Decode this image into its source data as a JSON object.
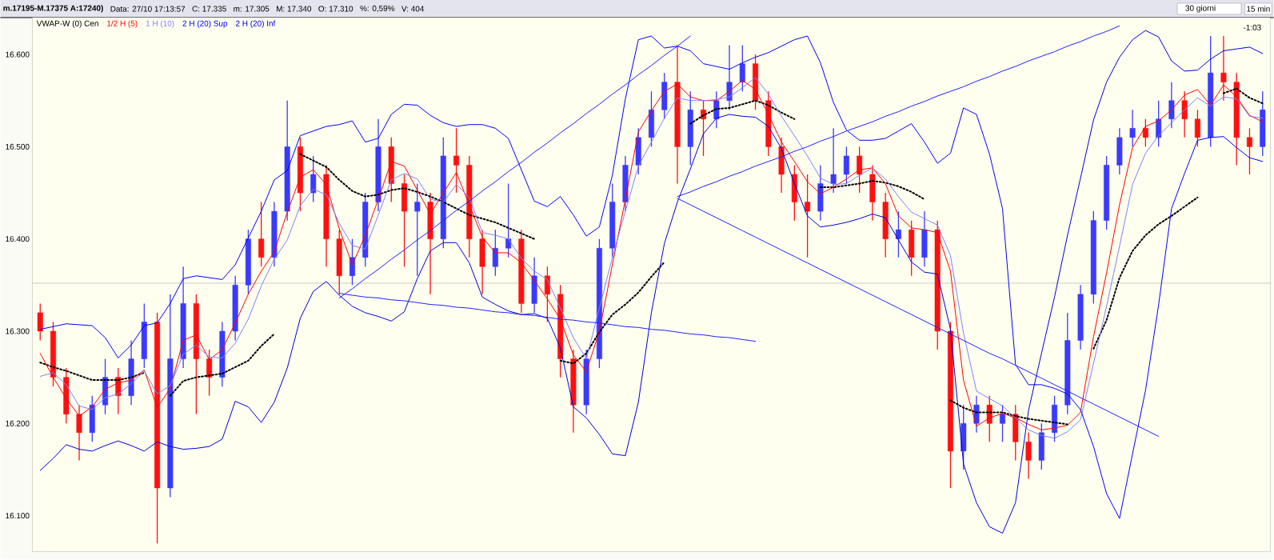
{
  "chart_data": {
    "type": "candlestick",
    "annotations": [
      "m.17195-M.17375 A:17240)",
      "Data: 27/10 17:13:57",
      "C: 17.335",
      "m: 17.305",
      "M: 17.340",
      "O: 17.310",
      "%: 0,59%",
      "V: 404",
      "30 giorni",
      "15 min",
      "-1:03"
    ],
    "categories": [
      null,
      null,
      null,
      null,
      null,
      null,
      null,
      null,
      null,
      null,
      null,
      null,
      null,
      null,
      null,
      null,
      null,
      null,
      null,
      null,
      null,
      null,
      null,
      null,
      null,
      null,
      null,
      null,
      null,
      null,
      null,
      null,
      null,
      null,
      null,
      null,
      null,
      null,
      null,
      null,
      null,
      null,
      null,
      null,
      null,
      null,
      null,
      null,
      null,
      null,
      null,
      null,
      null,
      null,
      null,
      null,
      null,
      null,
      null,
      null,
      null,
      null,
      null,
      null,
      null,
      null,
      null,
      null,
      null,
      null,
      null,
      null,
      null,
      null,
      null,
      null,
      null,
      null,
      null,
      null,
      null,
      null,
      null,
      null,
      null,
      null,
      null,
      null,
      null,
      null,
      null,
      null,
      null,
      null,
      null
    ],
    "ohlc": [
      [
        16.32,
        16.33,
        16.29,
        16.3
      ],
      [
        16.3,
        16.31,
        16.24,
        16.25
      ],
      [
        16.25,
        16.26,
        16.2,
        16.21
      ],
      [
        16.21,
        16.22,
        16.16,
        16.19
      ],
      [
        16.19,
        16.23,
        16.18,
        16.22
      ],
      [
        16.22,
        16.27,
        16.21,
        16.25
      ],
      [
        16.25,
        16.26,
        16.21,
        16.23
      ],
      [
        16.23,
        16.29,
        16.22,
        16.27
      ],
      [
        16.27,
        16.33,
        16.26,
        16.31
      ],
      [
        16.31,
        16.32,
        16.07,
        16.13
      ],
      [
        16.13,
        16.34,
        16.12,
        16.27
      ],
      [
        16.27,
        16.37,
        16.26,
        16.33
      ],
      [
        16.33,
        16.34,
        16.21,
        16.27
      ],
      [
        16.27,
        16.28,
        16.23,
        16.25
      ],
      [
        16.25,
        16.31,
        16.24,
        16.3
      ],
      [
        16.3,
        16.36,
        16.29,
        16.35
      ],
      [
        16.35,
        16.41,
        16.34,
        16.4
      ],
      [
        16.4,
        16.44,
        16.37,
        16.38
      ],
      [
        16.38,
        16.44,
        16.37,
        16.43
      ],
      [
        16.43,
        16.55,
        16.42,
        16.5
      ],
      [
        16.5,
        16.51,
        16.43,
        16.45
      ],
      [
        16.45,
        16.49,
        16.44,
        16.47
      ],
      [
        16.47,
        16.48,
        16.37,
        16.4
      ],
      [
        16.4,
        16.41,
        16.34,
        16.36
      ],
      [
        16.36,
        16.4,
        16.35,
        16.38
      ],
      [
        16.38,
        16.45,
        16.37,
        16.44
      ],
      [
        16.44,
        16.53,
        16.43,
        16.5
      ],
      [
        16.5,
        16.51,
        16.44,
        16.46
      ],
      [
        16.46,
        16.47,
        16.37,
        16.43
      ],
      [
        16.43,
        16.46,
        16.36,
        16.44
      ],
      [
        16.44,
        16.45,
        16.34,
        16.4
      ],
      [
        16.4,
        16.51,
        16.39,
        16.49
      ],
      [
        16.49,
        16.52,
        16.45,
        16.48
      ],
      [
        16.48,
        16.49,
        16.38,
        16.4
      ],
      [
        16.4,
        16.41,
        16.34,
        16.37
      ],
      [
        16.37,
        16.41,
        16.36,
        16.39
      ],
      [
        16.39,
        16.46,
        16.38,
        16.4
      ],
      [
        16.4,
        16.41,
        16.32,
        16.33
      ],
      [
        16.33,
        16.38,
        16.32,
        16.36
      ],
      [
        16.36,
        16.37,
        16.31,
        16.34
      ],
      [
        16.34,
        16.35,
        16.25,
        16.27
      ],
      [
        16.27,
        16.28,
        16.19,
        16.22
      ],
      [
        16.22,
        16.28,
        16.21,
        16.27
      ],
      [
        16.27,
        16.4,
        16.26,
        16.39
      ],
      [
        16.39,
        16.46,
        16.38,
        16.44
      ],
      [
        16.44,
        16.49,
        16.43,
        16.48
      ],
      [
        16.48,
        16.52,
        16.47,
        16.51
      ],
      [
        16.51,
        16.56,
        16.5,
        16.54
      ],
      [
        16.54,
        16.58,
        16.53,
        16.57
      ],
      [
        16.57,
        16.61,
        16.46,
        16.5
      ],
      [
        16.5,
        16.56,
        16.48,
        16.54
      ],
      [
        16.54,
        16.55,
        16.49,
        16.53
      ],
      [
        16.53,
        16.56,
        16.52,
        16.55
      ],
      [
        16.55,
        16.61,
        16.54,
        16.57
      ],
      [
        16.57,
        16.61,
        16.56,
        16.59
      ],
      [
        16.59,
        16.6,
        16.54,
        16.55
      ],
      [
        16.55,
        16.56,
        16.49,
        16.5
      ],
      [
        16.5,
        16.51,
        16.45,
        16.47
      ],
      [
        16.47,
        16.48,
        16.42,
        16.44
      ],
      [
        16.44,
        16.47,
        16.38,
        16.43
      ],
      [
        16.43,
        16.48,
        16.42,
        16.46
      ],
      [
        16.46,
        16.52,
        16.45,
        16.47
      ],
      [
        16.47,
        16.5,
        16.46,
        16.49
      ],
      [
        16.49,
        16.5,
        16.45,
        16.47
      ],
      [
        16.47,
        16.48,
        16.42,
        16.44
      ],
      [
        16.44,
        16.45,
        16.38,
        16.4
      ],
      [
        16.4,
        16.43,
        16.38,
        16.41
      ],
      [
        16.41,
        16.42,
        16.36,
        16.38
      ],
      [
        16.38,
        16.43,
        16.37,
        16.41
      ],
      [
        16.41,
        16.42,
        16.28,
        16.3
      ],
      [
        16.3,
        16.31,
        16.13,
        16.17
      ],
      [
        16.17,
        16.22,
        16.15,
        16.2
      ],
      [
        16.2,
        16.23,
        16.19,
        16.22
      ],
      [
        16.22,
        16.23,
        16.18,
        16.2
      ],
      [
        16.2,
        16.22,
        16.18,
        16.21
      ],
      [
        16.21,
        16.22,
        16.16,
        16.18
      ],
      [
        16.18,
        16.19,
        16.14,
        16.16
      ],
      [
        16.16,
        16.2,
        16.15,
        16.19
      ],
      [
        16.19,
        16.23,
        16.18,
        16.22
      ],
      [
        16.22,
        16.32,
        16.21,
        16.29
      ],
      [
        16.29,
        16.35,
        16.28,
        16.34
      ],
      [
        16.34,
        16.43,
        16.33,
        16.42
      ],
      [
        16.42,
        16.49,
        16.41,
        16.48
      ],
      [
        16.48,
        16.52,
        16.47,
        16.51
      ],
      [
        16.51,
        16.54,
        16.5,
        16.52
      ],
      [
        16.52,
        16.53,
        16.5,
        16.51
      ],
      [
        16.51,
        16.55,
        16.5,
        16.53
      ],
      [
        16.53,
        16.57,
        16.52,
        16.55
      ],
      [
        16.55,
        16.56,
        16.51,
        16.53
      ],
      [
        16.53,
        16.54,
        16.5,
        16.51
      ],
      [
        16.51,
        16.62,
        16.5,
        16.58
      ],
      [
        16.58,
        16.62,
        16.55,
        16.57
      ],
      [
        16.57,
        16.58,
        16.48,
        16.51
      ],
      [
        16.51,
        16.52,
        16.47,
        16.5
      ],
      [
        16.5,
        16.56,
        16.49,
        16.54
      ]
    ],
    "series": [
      {
        "name": "VWAP-W (0) Cen",
        "type": "line",
        "color": "#000000",
        "line_style": "dotted",
        "values": [
          16.266,
          16.261,
          16.257,
          16.252,
          16.247,
          16.247,
          16.247,
          16.25,
          16.255,
          null,
          16.23,
          16.246,
          16.25,
          16.252,
          16.254,
          16.261,
          16.268,
          16.284,
          16.297,
          null,
          16.492,
          16.485,
          16.478,
          16.464,
          16.452,
          16.446,
          16.448,
          16.453,
          16.455,
          16.451,
          16.446,
          16.44,
          16.433,
          16.426,
          16.422,
          16.418,
          16.412,
          16.406,
          16.4,
          null,
          16.268,
          16.265,
          16.276,
          16.299,
          16.318,
          16.329,
          16.342,
          16.359,
          16.375,
          null,
          16.525,
          16.534,
          16.541,
          16.542,
          16.546,
          16.55,
          16.545,
          16.537,
          16.53,
          null,
          16.456,
          16.456,
          16.458,
          16.46,
          16.463,
          16.461,
          16.457,
          16.451,
          16.443,
          null,
          16.225,
          16.217,
          16.212,
          16.212,
          16.212,
          16.208,
          16.205,
          16.203,
          16.201,
          16.199,
          null,
          16.281,
          16.312,
          16.358,
          16.387,
          16.404,
          16.416,
          16.425,
          16.435,
          16.445,
          null,
          16.558,
          16.563,
          16.553,
          16.547
        ]
      },
      {
        "name": "1/2 H (5)",
        "type": "line",
        "color": "#ff0000",
        "values": [
          16.276,
          16.25,
          16.227,
          16.208,
          16.218,
          16.237,
          16.244,
          16.247,
          16.258,
          16.217,
          16.238,
          16.29,
          16.296,
          16.269,
          16.28,
          16.309,
          16.34,
          16.365,
          16.386,
          16.429,
          16.467,
          16.475,
          16.459,
          16.411,
          16.372,
          16.404,
          16.443,
          16.484,
          16.479,
          16.453,
          16.427,
          16.45,
          16.472,
          16.437,
          16.402,
          16.385,
          16.385,
          16.374,
          16.355,
          16.335,
          16.313,
          16.274,
          16.256,
          16.3,
          16.372,
          16.443,
          16.516,
          16.539,
          16.56,
          16.568,
          16.554,
          16.55,
          16.55,
          16.56,
          16.572,
          16.562,
          16.535,
          16.505,
          16.484,
          16.462,
          16.449,
          16.456,
          16.465,
          16.475,
          16.477,
          16.46,
          16.425,
          16.412,
          16.41,
          16.407,
          16.365,
          16.247,
          16.197,
          16.206,
          16.211,
          16.206,
          16.199,
          16.193,
          16.195,
          16.198,
          16.212,
          16.294,
          16.363,
          16.437,
          16.499,
          16.522,
          16.528,
          16.54,
          16.556,
          16.562,
          16.545,
          16.567,
          16.554,
          16.534,
          16.527
        ]
      },
      {
        "name": "1 H (10)",
        "type": "line",
        "color": "#8080ff",
        "values": [
          16.251,
          16.255,
          16.242,
          16.219,
          16.215,
          16.228,
          16.232,
          16.243,
          16.257,
          16.232,
          16.241,
          16.275,
          16.285,
          16.272,
          16.271,
          16.287,
          16.313,
          16.349,
          16.378,
          16.399,
          16.436,
          16.454,
          16.448,
          16.417,
          16.393,
          16.389,
          16.426,
          16.464,
          16.471,
          16.465,
          16.443,
          16.44,
          16.459,
          16.445,
          16.407,
          16.404,
          16.4,
          16.379,
          16.365,
          16.356,
          16.325,
          16.293,
          16.27,
          16.325,
          16.38,
          16.43,
          16.479,
          16.505,
          16.531,
          16.553,
          16.55,
          16.55,
          16.551,
          16.554,
          16.564,
          16.575,
          16.557,
          16.533,
          16.512,
          16.49,
          16.466,
          16.459,
          16.46,
          16.469,
          16.477,
          16.465,
          16.446,
          16.429,
          16.422,
          16.415,
          16.382,
          16.298,
          16.235,
          16.227,
          16.219,
          16.206,
          16.193,
          16.187,
          16.184,
          16.191,
          16.204,
          16.265,
          16.327,
          16.392,
          16.459,
          16.493,
          16.512,
          16.526,
          16.54,
          16.553,
          16.544,
          16.554,
          16.552,
          16.533,
          16.531
        ]
      },
      {
        "name": "2 H (20) Sup",
        "type": "line",
        "color": "#0000ff",
        "values": [
          16.302,
          16.305,
          16.308,
          16.307,
          16.306,
          16.293,
          16.271,
          16.285,
          16.306,
          16.309,
          16.33,
          16.357,
          16.36,
          16.358,
          16.356,
          16.372,
          16.401,
          16.43,
          16.464,
          16.474,
          16.512,
          16.517,
          16.522,
          16.524,
          16.528,
          16.505,
          16.509,
          16.535,
          16.546,
          16.545,
          16.534,
          16.526,
          16.522,
          16.524,
          16.524,
          16.52,
          16.509,
          16.475,
          16.441,
          16.435,
          16.446,
          16.426,
          16.403,
          16.413,
          16.469,
          16.552,
          16.616,
          16.62,
          16.607,
          16.609,
          16.604,
          16.59,
          16.587,
          16.584,
          16.591,
          16.597,
          16.602,
          16.609,
          16.616,
          16.62,
          16.591,
          16.548,
          16.518,
          16.507,
          16.507,
          16.509,
          16.517,
          16.525,
          16.505,
          16.482,
          16.493,
          16.542,
          16.535,
          16.492,
          16.433,
          16.264,
          16.242,
          16.242,
          16.238,
          16.232,
          16.215,
          16.175,
          16.124,
          16.097,
          16.167,
          16.236,
          16.328,
          16.433,
          16.471,
          16.507,
          16.51,
          16.511,
          16.499,
          16.488,
          16.484
        ]
      },
      {
        "name": "2 H (20) Inf",
        "type": "line",
        "color": "#0000d8",
        "values": [
          16.149,
          16.162,
          16.177,
          16.172,
          16.17,
          16.176,
          16.181,
          16.176,
          16.17,
          16.18,
          16.175,
          16.172,
          16.173,
          16.175,
          16.183,
          16.224,
          16.218,
          16.201,
          16.223,
          16.26,
          16.314,
          16.343,
          16.354,
          16.339,
          16.327,
          16.32,
          16.316,
          16.311,
          16.321,
          16.357,
          16.387,
          16.396,
          16.396,
          16.374,
          16.337,
          16.329,
          16.322,
          16.318,
          16.319,
          16.314,
          16.282,
          16.218,
          16.206,
          16.188,
          16.167,
          16.165,
          16.223,
          16.32,
          16.395,
          16.44,
          16.476,
          16.514,
          16.531,
          16.535,
          16.533,
          16.532,
          16.522,
          16.498,
          16.46,
          16.425,
          16.413,
          16.415,
          16.418,
          16.422,
          16.427,
          16.423,
          16.399,
          16.375,
          16.364,
          16.362,
          16.302,
          16.156,
          16.114,
          16.088,
          16.081,
          16.114,
          16.214,
          16.276,
          16.337,
          16.404,
          16.466,
          16.529,
          16.57,
          16.597,
          16.616,
          16.626,
          16.619,
          16.593,
          16.582,
          16.583,
          16.595,
          16.604,
          16.606,
          16.608,
          16.601
        ]
      },
      {
        "type": "line",
        "color": "#2020ff",
        "values": [
          null,
          null,
          null,
          null,
          null,
          null,
          null,
          null,
          null,
          null,
          null,
          null,
          null,
          null,
          null,
          null,
          null,
          null,
          null,
          null,
          null,
          null,
          null,
          16.336,
          16.346,
          16.357,
          16.367,
          16.378,
          16.388,
          16.399,
          16.409,
          16.42,
          16.431,
          16.441,
          16.452,
          16.462,
          16.473,
          16.483,
          16.494,
          16.504,
          16.515,
          16.525,
          16.536,
          16.546,
          16.557,
          16.567,
          16.578,
          16.588,
          16.599,
          16.609,
          16.62,
          null,
          null,
          null,
          null,
          null,
          null,
          null,
          null,
          null,
          null,
          null,
          null,
          null,
          null,
          null,
          null,
          null,
          null,
          null,
          null,
          null,
          null,
          null,
          null,
          null,
          null,
          null,
          null,
          null,
          null,
          null,
          null,
          null,
          null,
          null,
          null,
          null,
          null,
          null,
          null,
          null,
          null,
          null,
          null
        ]
      },
      {
        "type": "line",
        "color": "#2020ff",
        "values": [
          null,
          null,
          null,
          null,
          null,
          null,
          null,
          null,
          null,
          null,
          null,
          null,
          null,
          null,
          null,
          null,
          null,
          null,
          null,
          null,
          null,
          null,
          null,
          16.341,
          16.339,
          16.337,
          16.336,
          16.334,
          16.333,
          16.331,
          16.329,
          16.328,
          16.326,
          16.325,
          16.323,
          16.321,
          16.32,
          16.318,
          16.317,
          16.315,
          16.313,
          16.312,
          16.31,
          16.309,
          16.307,
          16.305,
          16.304,
          16.302,
          16.301,
          16.299,
          16.297,
          16.296,
          16.294,
          16.293,
          16.291,
          16.289,
          null,
          null,
          null,
          null,
          null,
          null,
          null,
          null,
          null,
          null,
          null,
          null,
          null,
          null,
          null,
          null,
          null,
          null,
          null,
          null,
          null,
          null,
          null,
          null,
          null,
          null,
          null,
          null,
          null,
          null,
          null,
          null,
          null,
          null,
          null,
          null,
          null,
          null,
          null
        ]
      },
      {
        "type": "line",
        "color": "#2020ff",
        "values": [
          null,
          null,
          null,
          null,
          null,
          null,
          null,
          null,
          null,
          null,
          null,
          null,
          null,
          null,
          null,
          null,
          null,
          null,
          null,
          null,
          null,
          null,
          null,
          null,
          null,
          null,
          null,
          null,
          null,
          null,
          null,
          null,
          null,
          null,
          null,
          null,
          null,
          null,
          null,
          null,
          null,
          null,
          null,
          null,
          null,
          null,
          null,
          null,
          null,
          16.446,
          16.451,
          16.457,
          16.462,
          16.468,
          16.473,
          16.479,
          16.484,
          16.489,
          16.495,
          16.5,
          16.506,
          16.511,
          16.517,
          16.522,
          16.527,
          16.533,
          16.538,
          16.544,
          16.549,
          16.555,
          16.56,
          16.565,
          16.571,
          16.576,
          16.582,
          16.587,
          16.593,
          16.598,
          16.603,
          16.609,
          16.614,
          16.62,
          16.625,
          16.631,
          null,
          null,
          null,
          null,
          null,
          null,
          null,
          null,
          null,
          null,
          null
        ]
      },
      {
        "type": "line",
        "color": "#2020ff",
        "values": [
          null,
          null,
          null,
          null,
          null,
          null,
          null,
          null,
          null,
          null,
          null,
          null,
          null,
          null,
          null,
          null,
          null,
          null,
          null,
          null,
          null,
          null,
          null,
          null,
          null,
          null,
          null,
          null,
          null,
          null,
          null,
          null,
          null,
          null,
          null,
          null,
          null,
          null,
          null,
          null,
          null,
          null,
          null,
          null,
          null,
          null,
          null,
          null,
          null,
          16.444,
          16.437,
          16.43,
          16.423,
          16.416,
          16.409,
          16.402,
          16.395,
          16.388,
          16.381,
          16.374,
          16.367,
          16.36,
          16.353,
          16.346,
          16.339,
          16.332,
          16.325,
          16.318,
          16.311,
          16.304,
          16.297,
          16.29,
          16.283,
          16.276,
          16.27,
          16.263,
          16.256,
          16.249,
          16.242,
          16.235,
          16.228,
          16.221,
          16.214,
          16.207,
          16.2,
          16.193,
          16.186,
          null,
          null,
          null,
          null,
          null,
          null,
          null,
          null
        ]
      }
    ],
    "ref_lines": [
      {
        "axis": "y",
        "value": 16.352,
        "color": "#b4b4b4"
      }
    ],
    "ylim": [
      16.061,
      16.64
    ],
    "yticks": [
      {
        "value": 16.1,
        "label": "16.100"
      },
      {
        "value": 16.2,
        "label": "16.200"
      },
      {
        "value": 16.3,
        "label": "16.300"
      },
      {
        "value": 16.4,
        "label": "16.400"
      },
      {
        "value": 16.5,
        "label": "16.500"
      },
      {
        "value": 16.6,
        "label": "16.600"
      }
    ],
    "tick_labels": "y",
    "marker": "none"
  }
}
